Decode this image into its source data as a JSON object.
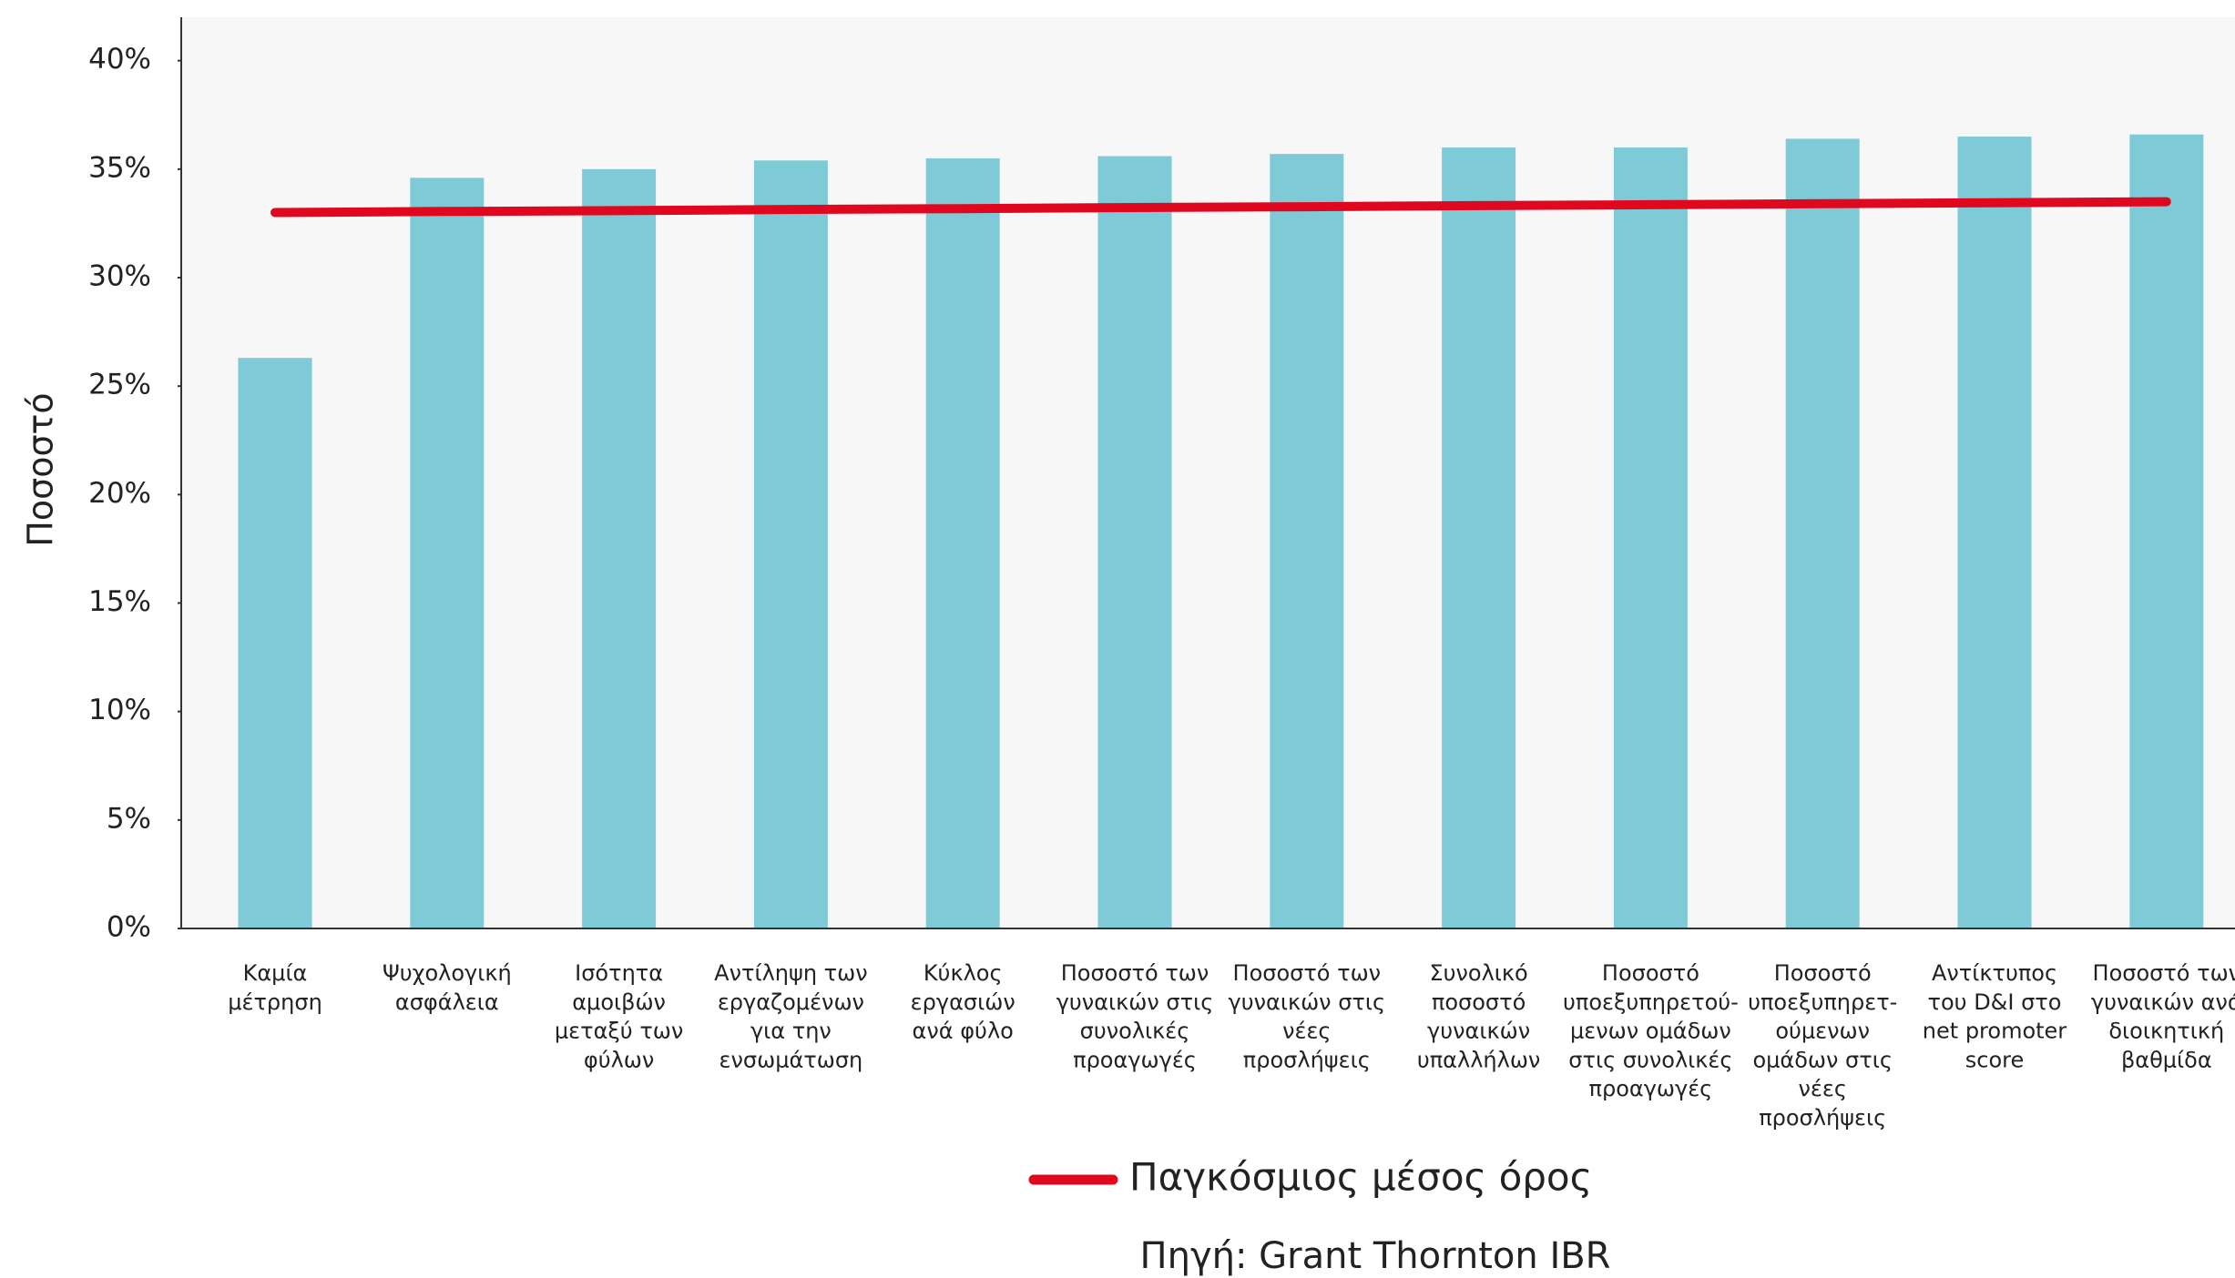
{
  "chart_data": {
    "type": "bar",
    "y_label": "Ποσοστό",
    "categories": [
      [
        "Καμία",
        "μέτρηση"
      ],
      [
        "Ψυχολογική",
        "ασφάλεια"
      ],
      [
        "Ισότητα",
        "αμοιβών",
        "μεταξύ των",
        "φύλων"
      ],
      [
        "Αντίληψη των",
        "εργαζομένων",
        "για την",
        "ενσωμάτωση"
      ],
      [
        "Κύκλος",
        "εργασιών",
        "ανά φύλο"
      ],
      [
        "Ποσοστό των",
        "γυναικών στις",
        "συνολικές",
        "προαγωγές"
      ],
      [
        "Ποσοστό των",
        "γυναικών στις",
        "νέες",
        "προσλήψεις"
      ],
      [
        "Συνολικό",
        "ποσοστό",
        "γυναικών",
        "υπαλλήλων"
      ],
      [
        "Ποσοστό",
        "υποεξυπηρετού-",
        "μενων ομάδων",
        "στις συνολικές",
        "προαγωγές"
      ],
      [
        "Ποσοστό",
        "υποεξυπηρετ-",
        "ούμενων",
        "ομάδων στις",
        "νέες",
        "προσλήψεις"
      ],
      [
        "Αντίκτυπος",
        "του D&I στο",
        "net promoter",
        "score"
      ],
      [
        "Ποσοστό των",
        "γυναικών ανά",
        "διοικητική",
        "βαθμίδα"
      ]
    ],
    "series": [
      {
        "type": "bar",
        "color": "#7ecad6",
        "values": [
          26.3,
          34.6,
          35.0,
          35.4,
          35.5,
          35.6,
          35.7,
          36.0,
          36.0,
          36.4,
          36.5,
          36.6
        ]
      },
      {
        "type": "line",
        "name": "Παγκόσμιος μέσος όρος",
        "color": "#e0081f",
        "values": [
          33.0,
          33.05,
          33.09,
          33.14,
          33.18,
          33.23,
          33.27,
          33.32,
          33.36,
          33.41,
          33.45,
          33.5
        ]
      }
    ],
    "ylim": [
      0,
      42
    ],
    "yticks": [
      {
        "value": 0,
        "label": "0%"
      },
      {
        "value": 5,
        "label": "5%"
      },
      {
        "value": 10,
        "label": "10%"
      },
      {
        "value": 15,
        "label": "15%"
      },
      {
        "value": 20,
        "label": "20%"
      },
      {
        "value": 25,
        "label": "25%"
      },
      {
        "value": 30,
        "label": "30%"
      },
      {
        "value": 35,
        "label": "35%"
      },
      {
        "value": 40,
        "label": "40%"
      }
    ],
    "source": "Πηγή: Grant Thornton IBR"
  }
}
